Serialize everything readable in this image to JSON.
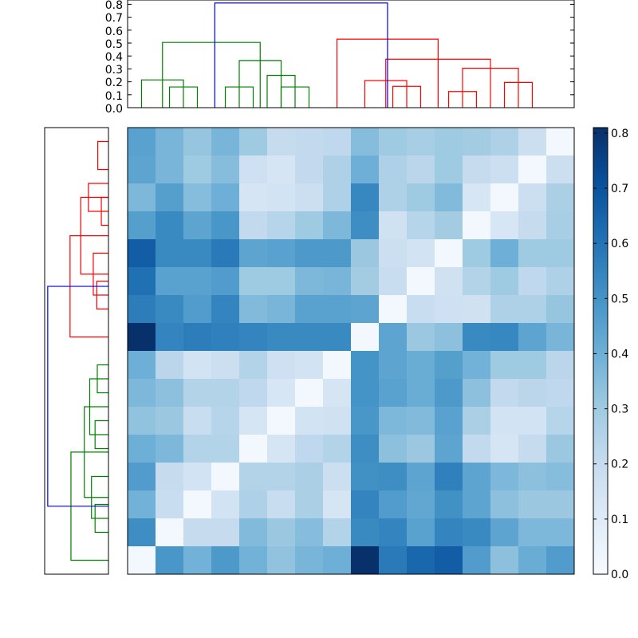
{
  "chart_data": [
    {
      "type": "dendrogram",
      "name": "column-dendrogram",
      "orientation": "top",
      "ylim": [
        0,
        0.8
      ],
      "yticks": [
        0.0,
        0.1,
        0.2,
        0.3,
        0.4,
        0.5,
        0.6,
        0.7,
        0.8
      ],
      "ytick_labels": [
        "0.0",
        "0.1",
        "0.2",
        "0.3",
        "0.4",
        "0.5",
        "0.6",
        "0.7",
        "0.8"
      ],
      "links": [
        {
          "color": "#008000",
          "a": 1,
          "b": 2,
          "h": 0.16
        },
        {
          "color": "#008000",
          "a": 0,
          "b": 1.5,
          "h": 0.215
        },
        {
          "color": "#008000",
          "a": 3,
          "b": 4,
          "h": 0.16
        },
        {
          "color": "#008000",
          "a": 5,
          "b": 6,
          "h": 0.16
        },
        {
          "color": "#008000",
          "a": 4.5,
          "b": 5.5,
          "h": 0.25
        },
        {
          "color": "#008000",
          "a": 3.5,
          "b": 5,
          "h": 0.365
        },
        {
          "color": "#008000",
          "a": 0.75,
          "b": 4.25,
          "h": 0.505
        },
        {
          "color": "#ff0000",
          "a": 9,
          "b": 10,
          "h": 0.165
        },
        {
          "color": "#ff0000",
          "a": 8,
          "b": 9.5,
          "h": 0.21
        },
        {
          "color": "#ff0000",
          "a": 11,
          "b": 12,
          "h": 0.125
        },
        {
          "color": "#ff0000",
          "a": 13,
          "b": 14,
          "h": 0.195
        },
        {
          "color": "#ff0000",
          "a": 11.5,
          "b": 13.5,
          "h": 0.305
        },
        {
          "color": "#ff0000",
          "a": 8.75,
          "b": 12.5,
          "h": 0.375
        },
        {
          "color": "#ff0000",
          "a": 7,
          "b": 10.625,
          "h": 0.53
        },
        {
          "color": "#0000ff",
          "a": 2.625,
          "b": 8.8125,
          "h": 0.81
        }
      ]
    },
    {
      "type": "dendrogram",
      "name": "row-dendrogram",
      "orientation": "left",
      "links": [
        {
          "color": "#ff0000",
          "a": 0,
          "b": 1,
          "h": 0.12
        },
        {
          "color": "#ff0000",
          "a": 2,
          "b": 3,
          "h": 0.08
        },
        {
          "color": "#ff0000",
          "a": 1.5,
          "b": 2.5,
          "h": 0.225
        },
        {
          "color": "#ff0000",
          "a": 5,
          "b": 6,
          "h": 0.13
        },
        {
          "color": "#ff0000",
          "a": 4,
          "b": 5.5,
          "h": 0.17
        },
        {
          "color": "#ff0000",
          "a": 2,
          "b": 4.75,
          "h": 0.31
        },
        {
          "color": "#ff0000",
          "a": 3.375,
          "b": 7,
          "h": 0.43
        },
        {
          "color": "#008000",
          "a": 8,
          "b": 9,
          "h": 0.125
        },
        {
          "color": "#008000",
          "a": 10,
          "b": 11,
          "h": 0.15
        },
        {
          "color": "#008000",
          "a": 8.5,
          "b": 10.5,
          "h": 0.21
        },
        {
          "color": "#008000",
          "a": 13,
          "b": 14,
          "h": 0.15
        },
        {
          "color": "#008000",
          "a": 12,
          "b": 13.5,
          "h": 0.19
        },
        {
          "color": "#008000",
          "a": 9.5,
          "b": 12.75,
          "h": 0.27
        },
        {
          "color": "#008000",
          "a": 11.125,
          "b": 15,
          "h": 0.42
        },
        {
          "color": "#0000ff",
          "a": 5.1875,
          "b": 13.0625,
          "h": 0.68
        }
      ]
    },
    {
      "type": "heatmap",
      "name": "distance-matrix",
      "rows": 16,
      "cols": 16,
      "cmap": "Blues",
      "vmin": 0,
      "vmax": 0.81,
      "values": [
        [
          0.45,
          0.38,
          0.32,
          0.38,
          0.3,
          0.2,
          0.21,
          0.22,
          0.35,
          0.3,
          0.28,
          0.3,
          0.29,
          0.26,
          0.18,
          0.02
        ],
        [
          0.44,
          0.38,
          0.3,
          0.35,
          0.17,
          0.14,
          0.21,
          0.26,
          0.4,
          0.26,
          0.23,
          0.3,
          0.2,
          0.18,
          0.02,
          0.18
        ],
        [
          0.37,
          0.46,
          0.35,
          0.4,
          0.14,
          0.15,
          0.18,
          0.26,
          0.54,
          0.26,
          0.3,
          0.36,
          0.13,
          0.02,
          0.18,
          0.27
        ],
        [
          0.46,
          0.53,
          0.44,
          0.49,
          0.21,
          0.24,
          0.3,
          0.37,
          0.52,
          0.16,
          0.24,
          0.29,
          0.02,
          0.13,
          0.2,
          0.28
        ],
        [
          0.67,
          0.53,
          0.53,
          0.58,
          0.44,
          0.45,
          0.48,
          0.48,
          0.31,
          0.18,
          0.15,
          0.02,
          0.3,
          0.4,
          0.3,
          0.3
        ],
        [
          0.61,
          0.45,
          0.45,
          0.47,
          0.3,
          0.3,
          0.37,
          0.38,
          0.29,
          0.19,
          0.02,
          0.16,
          0.25,
          0.3,
          0.22,
          0.26
        ],
        [
          0.57,
          0.53,
          0.47,
          0.55,
          0.36,
          0.38,
          0.45,
          0.45,
          0.44,
          0.02,
          0.19,
          0.17,
          0.16,
          0.26,
          0.26,
          0.32
        ],
        [
          0.81,
          0.55,
          0.57,
          0.56,
          0.55,
          0.53,
          0.53,
          0.53,
          0.02,
          0.44,
          0.31,
          0.34,
          0.53,
          0.54,
          0.44,
          0.38
        ],
        [
          0.4,
          0.23,
          0.15,
          0.18,
          0.25,
          0.17,
          0.15,
          0.02,
          0.5,
          0.44,
          0.41,
          0.46,
          0.39,
          0.3,
          0.3,
          0.23
        ],
        [
          0.37,
          0.34,
          0.25,
          0.25,
          0.22,
          0.13,
          0.02,
          0.14,
          0.5,
          0.45,
          0.41,
          0.48,
          0.34,
          0.21,
          0.23,
          0.22
        ],
        [
          0.33,
          0.31,
          0.19,
          0.24,
          0.14,
          0.02,
          0.15,
          0.16,
          0.49,
          0.37,
          0.36,
          0.45,
          0.27,
          0.15,
          0.15,
          0.24
        ],
        [
          0.4,
          0.37,
          0.25,
          0.25,
          0.02,
          0.14,
          0.22,
          0.25,
          0.52,
          0.34,
          0.31,
          0.44,
          0.21,
          0.14,
          0.2,
          0.31
        ],
        [
          0.47,
          0.2,
          0.15,
          0.02,
          0.25,
          0.25,
          0.27,
          0.18,
          0.51,
          0.52,
          0.44,
          0.56,
          0.44,
          0.37,
          0.34,
          0.35
        ],
        [
          0.39,
          0.19,
          0.02,
          0.15,
          0.26,
          0.19,
          0.27,
          0.14,
          0.55,
          0.47,
          0.43,
          0.51,
          0.44,
          0.34,
          0.31,
          0.31
        ],
        [
          0.52,
          0.02,
          0.2,
          0.2,
          0.36,
          0.31,
          0.35,
          0.25,
          0.53,
          0.55,
          0.45,
          0.55,
          0.53,
          0.44,
          0.37,
          0.37
        ],
        [
          0.02,
          0.49,
          0.39,
          0.48,
          0.39,
          0.33,
          0.38,
          0.4,
          0.81,
          0.58,
          0.64,
          0.67,
          0.47,
          0.34,
          0.41,
          0.47
        ]
      ]
    },
    {
      "type": "colorbar",
      "name": "colorbar",
      "vmin": 0,
      "vmax": 0.81,
      "ticks": [
        0.0,
        0.1,
        0.2,
        0.3,
        0.4,
        0.5,
        0.6,
        0.7,
        0.8
      ],
      "tick_labels": [
        "0.0",
        "0.1",
        "0.2",
        "0.3",
        "0.4",
        "0.5",
        "0.6",
        "0.7",
        "0.8"
      ]
    }
  ]
}
